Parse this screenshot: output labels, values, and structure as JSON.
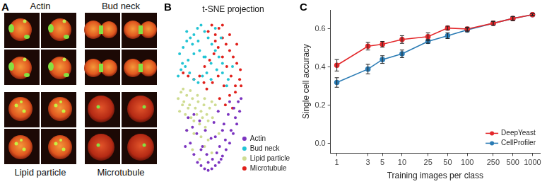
{
  "panel_a": {
    "panel": "A",
    "images": [
      {
        "label": "Actin"
      },
      {
        "label": "Bud neck"
      },
      {
        "label": "Lipid particle"
      },
      {
        "label": "Microtubule"
      }
    ]
  },
  "chart_data": [
    {
      "panel": "B",
      "type": "scatter",
      "title": "t-SNE projection",
      "xlim": [
        0,
        170
      ],
      "ylim": [
        0,
        100
      ],
      "tick_labels": false,
      "grid": false,
      "legend": "bottom-right",
      "marker": "circle",
      "series": [
        {
          "name": "Actin",
          "color": "#7b34c0",
          "x": [
            20,
            25,
            30,
            35,
            40,
            45,
            50,
            55,
            60,
            65,
            70,
            75,
            80,
            85,
            90,
            22,
            28,
            34,
            42,
            48,
            56,
            62,
            68,
            74,
            82,
            88,
            94,
            30,
            38,
            46,
            54,
            60,
            66,
            72,
            78,
            86,
            92,
            40,
            50,
            58,
            64,
            70,
            80,
            18,
            96
          ],
          "y": [
            30,
            22,
            15,
            10,
            8,
            6,
            5,
            6,
            8,
            10,
            14,
            18,
            22,
            28,
            34,
            38,
            32,
            28,
            20,
            15,
            12,
            16,
            12,
            24,
            30,
            38,
            42,
            40,
            36,
            30,
            25,
            26,
            20,
            34,
            40,
            44,
            48,
            18,
            10,
            35,
            42,
            30,
            48,
            20,
            50
          ]
        },
        {
          "name": "Bud neck",
          "color": "#22c4d4",
          "x": [
            10,
            15,
            20,
            25,
            30,
            35,
            40,
            45,
            50,
            55,
            60,
            65,
            70,
            8,
            12,
            18,
            24,
            30,
            36,
            42,
            48,
            54,
            14,
            22,
            30,
            38,
            46,
            54,
            62,
            70,
            78,
            20,
            28,
            36,
            44,
            60,
            68,
            76,
            84
          ],
          "y": [
            78,
            82,
            86,
            88,
            90,
            94,
            96,
            92,
            88,
            84,
            80,
            76,
            72,
            64,
            68,
            70,
            66,
            62,
            60,
            64,
            66,
            62,
            72,
            74,
            78,
            80,
            76,
            72,
            68,
            66,
            62,
            92,
            84,
            86,
            76,
            94,
            88,
            58,
            70
          ]
        },
        {
          "name": "Lipid particle",
          "color": "#cfdc92",
          "x": [
            8,
            12,
            16,
            20,
            24,
            28,
            32,
            36,
            40,
            44,
            48,
            52,
            56,
            10,
            14,
            18,
            22,
            26,
            30,
            34,
            38,
            42,
            46,
            50,
            15,
            25,
            35,
            45,
            55,
            60,
            20,
            30,
            40,
            50,
            45,
            55,
            65,
            38,
            28
          ],
          "y": [
            50,
            54,
            48,
            52,
            46,
            50,
            44,
            48,
            42,
            46,
            40,
            44,
            38,
            42,
            46,
            40,
            44,
            38,
            36,
            40,
            34,
            38,
            32,
            36,
            56,
            55,
            52,
            50,
            48,
            46,
            30,
            28,
            26,
            24,
            20,
            16,
            28,
            12,
            18
          ]
        },
        {
          "name": "Microtubule",
          "color": "#e0201b",
          "x": [
            50,
            55,
            60,
            65,
            70,
            75,
            80,
            85,
            90,
            95,
            45,
            52,
            58,
            64,
            70,
            76,
            82,
            88,
            94,
            48,
            56,
            64,
            72,
            80,
            88,
            96,
            60,
            70,
            80,
            90,
            15,
            22,
            30,
            38,
            44,
            66,
            74,
            84
          ],
          "y": [
            92,
            96,
            90,
            94,
            88,
            84,
            80,
            76,
            72,
            68,
            70,
            74,
            78,
            82,
            76,
            70,
            64,
            58,
            62,
            56,
            60,
            64,
            58,
            52,
            54,
            58,
            86,
            96,
            90,
            84,
            66,
            64,
            62,
            64,
            60,
            50,
            46,
            44
          ]
        }
      ]
    },
    {
      "panel": "C",
      "type": "line",
      "x_label": "Training images per class",
      "y_label": "Single cell accuracy",
      "log": "x",
      "grid": false,
      "legend": "bottom-right",
      "marker": "circle",
      "line_style": "solid",
      "x": [
        1,
        3,
        5,
        10,
        25,
        50,
        100,
        250,
        500,
        1000
      ],
      "xlim": [
        0.8,
        1300
      ],
      "xticks": [
        1,
        3,
        5,
        10,
        25,
        50,
        100,
        250,
        500,
        1000
      ],
      "ylim": [
        -0.05,
        0.7
      ],
      "yticks": [
        {
          "value": 0,
          "label": "0.0"
        },
        0.2,
        0.4,
        0.6
      ],
      "series": [
        {
          "name": "DeepYeast",
          "color": "#e3282b",
          "values": [
            0.41,
            0.51,
            0.52,
            0.545,
            0.56,
            0.605,
            0.6,
            0.63,
            0.655,
            0.675
          ],
          "errors": [
            0.03,
            0.02,
            0.015,
            0.02,
            0.02,
            0.01,
            0.01,
            0.01,
            0.01,
            0.005
          ]
        },
        {
          "name": "CellProfiler",
          "color": "#2a7bb4",
          "values": [
            0.32,
            0.39,
            0.44,
            0.47,
            0.535,
            0.565,
            0.595,
            0.63,
            0.655,
            0.675
          ],
          "errors": [
            0.025,
            0.025,
            0.02,
            0.02,
            0.01,
            0.015,
            0.01,
            0.01,
            0.01,
            0.005
          ]
        }
      ]
    }
  ]
}
